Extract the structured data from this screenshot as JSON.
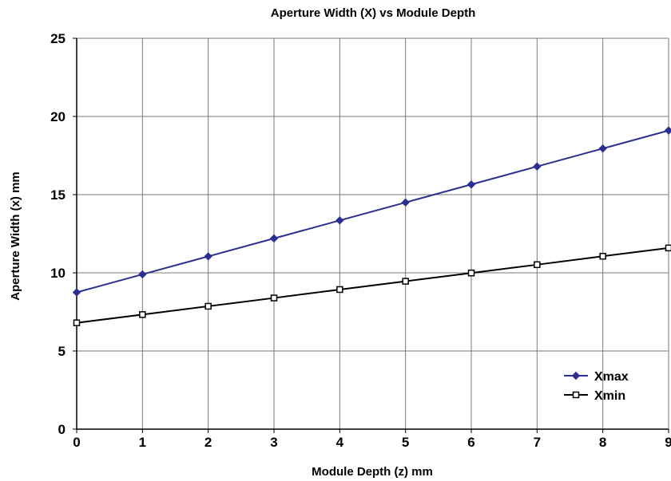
{
  "chart_data": {
    "type": "line",
    "title": "Aperture Width (X) vs Module Depth",
    "xlabel": "Module Depth (z) mm",
    "ylabel": "Aperture Width (x) mm",
    "xlim": [
      0,
      9
    ],
    "ylim": [
      0,
      25
    ],
    "x_ticks": [
      0,
      1,
      2,
      3,
      4,
      5,
      6,
      7,
      8,
      9
    ],
    "y_ticks": [
      0,
      5,
      10,
      15,
      20,
      25
    ],
    "grid": true,
    "legend_position": "bottom-right",
    "x": [
      0,
      1,
      2,
      3,
      4,
      5,
      6,
      7,
      8,
      9
    ],
    "series": [
      {
        "name": "Xmax",
        "color": "#2b2f8f",
        "marker": "diamond-filled",
        "values": [
          8.75,
          9.9,
          11.05,
          12.2,
          13.35,
          14.5,
          15.65,
          16.8,
          17.95,
          19.1
        ]
      },
      {
        "name": "Xmin",
        "color": "#000000",
        "marker": "square-open",
        "values": [
          6.8,
          7.33,
          7.86,
          8.39,
          8.93,
          9.46,
          9.99,
          10.52,
          11.06,
          11.59
        ]
      }
    ]
  }
}
